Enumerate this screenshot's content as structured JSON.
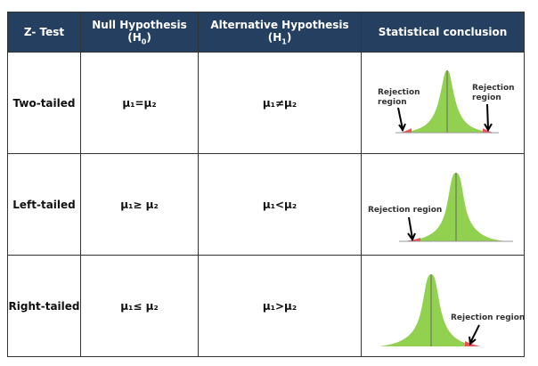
{
  "header": {
    "col1": "Z- Test",
    "col2": "Null Hypothesis (H",
    "col2_sub": "0",
    "col3": "Alternative Hypothesis (H",
    "col3_sub": "1",
    "col4": "Statistical conclusion",
    "close_paren": ")"
  },
  "rows": [
    {
      "test": "Two-tailed",
      "null": "μ₁=μ₂",
      "alt": "μ₁≠μ₂",
      "labels": [
        "Rejection",
        "region",
        "Rejection",
        "region"
      ]
    },
    {
      "test": "Left-tailed",
      "null": "μ₁≥ μ₂",
      "alt": "μ₁<μ₂",
      "labels": [
        "Rejection region"
      ]
    },
    {
      "test": "Right-tailed",
      "null": "μ₁≤ μ₂",
      "alt": "μ₁>μ₂",
      "labels": [
        "Rejection region"
      ]
    }
  ],
  "colors": {
    "header_bg": "#243f60",
    "curve": "#92d050",
    "rejection": "#e8505b"
  }
}
